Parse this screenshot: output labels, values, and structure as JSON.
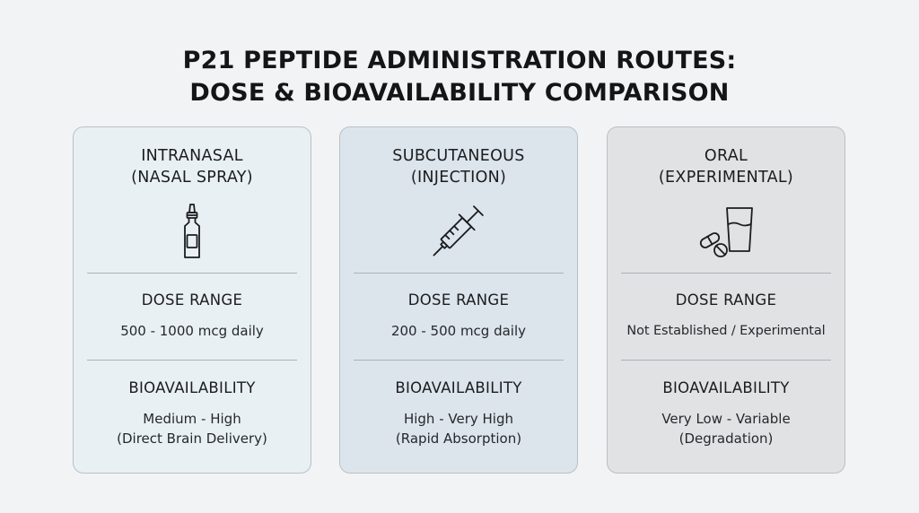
{
  "title": {
    "line1": "P21 PEPTIDE ADMINISTRATION ROUTES:",
    "line2": "DOSE & BIOAVAILABILITY COMPARISON"
  },
  "routes": [
    {
      "name_line1": "INTRANASAL",
      "name_line2": "(NASAL SPRAY)",
      "icon": "nasal-spray-icon",
      "dose_label": "DOSE RANGE",
      "dose_value": "500 - 1000 mcg daily",
      "bio_label": "BIOAVAILABILITY",
      "bio_line1": "Medium - High",
      "bio_line2": "(Direct Brain Delivery)",
      "background": "#e9f0f4"
    },
    {
      "name_line1": "SUBCUTANEOUS",
      "name_line2": "(INJECTION)",
      "icon": "syringe-icon",
      "dose_label": "DOSE RANGE",
      "dose_value": "200 - 500 mcg daily",
      "bio_label": "BIOAVAILABILITY",
      "bio_line1": "High - Very High",
      "bio_line2": "(Rapid Absorption)",
      "background": "#dce5ec"
    },
    {
      "name_line1": "ORAL",
      "name_line2": "(EXPERIMENTAL)",
      "icon": "pills-and-glass-icon",
      "dose_label": "DOSE RANGE",
      "dose_value": "Not Established / Experimental",
      "bio_label": "BIOAVAILABILITY",
      "bio_line1": "Very Low - Variable",
      "bio_line2": "(Degradation)",
      "background": "#e1e2e4"
    }
  ]
}
